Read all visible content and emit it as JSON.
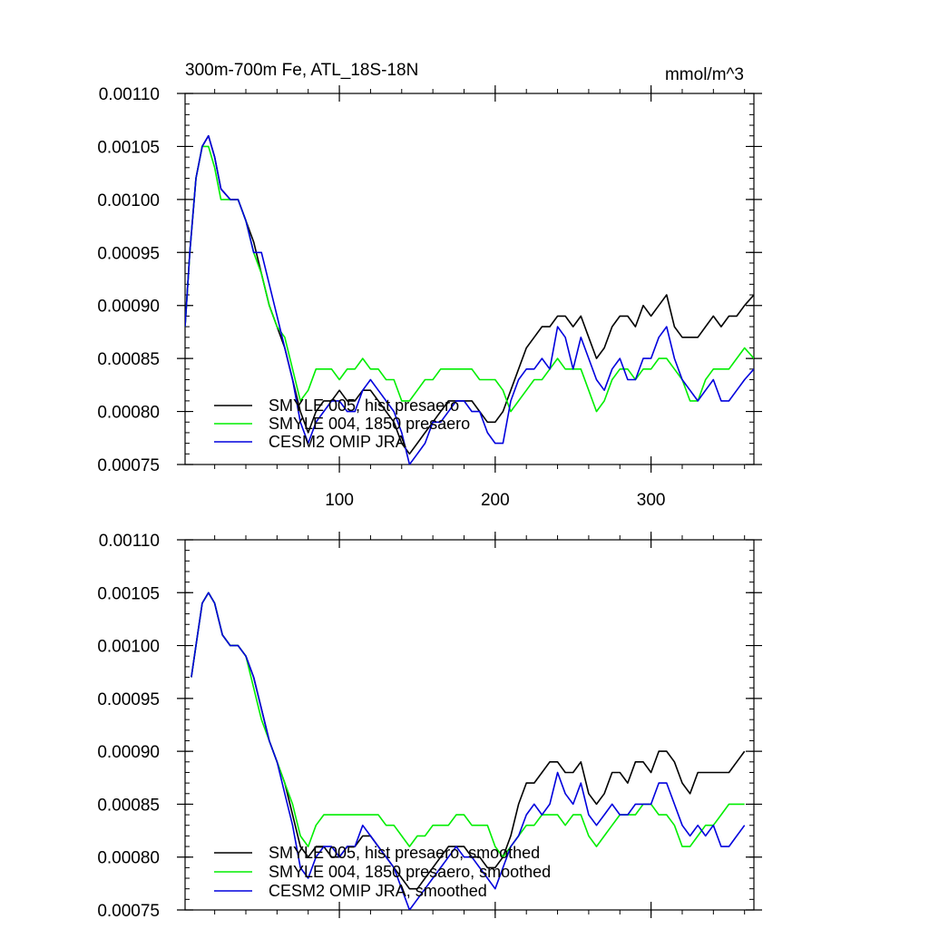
{
  "figure": {
    "title": "300m-700m Fe, ATL_18S-18N",
    "units": "mmol/m^3"
  },
  "colors": {
    "hist": "#000000",
    "pi1850": "#00ee00",
    "omip": "#0000dd"
  },
  "chart_data": [
    {
      "type": "line",
      "title": "300m-700m Fe, ATL_18S-18N",
      "units": "mmol/m^3",
      "xlabel": "",
      "ylabel": "",
      "xlim": [
        1,
        366
      ],
      "ylim": [
        0.00075,
        0.0011
      ],
      "x_ticks": [
        100,
        200,
        300
      ],
      "x_tick_labels": [
        "100",
        "200",
        "300"
      ],
      "y_ticks": [
        0.00075,
        0.0008,
        0.00085,
        0.0009,
        0.00095,
        0.001,
        0.00105,
        0.0011
      ],
      "y_tick_labels": [
        "0.00075",
        "0.00080",
        "0.00085",
        "0.00090",
        "0.00095",
        "0.00100",
        "0.00105",
        "0.00110"
      ],
      "legend_position": "bottom-left",
      "series": [
        {
          "name": "SMYLE 005, hist presaero",
          "color_key": "hist",
          "x": [
            1,
            4,
            8,
            12,
            16,
            20,
            24,
            30,
            35,
            40,
            45,
            50,
            55,
            60,
            65,
            70,
            75,
            80,
            85,
            90,
            95,
            100,
            105,
            110,
            115,
            120,
            125,
            130,
            135,
            140,
            145,
            150,
            155,
            160,
            165,
            170,
            175,
            180,
            185,
            190,
            195,
            200,
            205,
            210,
            215,
            220,
            225,
            230,
            235,
            240,
            245,
            250,
            255,
            260,
            265,
            270,
            275,
            280,
            285,
            290,
            295,
            300,
            305,
            310,
            315,
            320,
            325,
            330,
            335,
            340,
            345,
            350,
            355,
            360,
            366
          ],
          "values": [
            0.00088,
            0.00095,
            0.00102,
            0.00105,
            0.00106,
            0.00104,
            0.00101,
            0.001,
            0.001,
            0.00098,
            0.00096,
            0.00093,
            0.0009,
            0.00088,
            0.00086,
            0.00083,
            0.0008,
            0.00078,
            0.0008,
            0.00081,
            0.00081,
            0.00082,
            0.00081,
            0.00081,
            0.00082,
            0.00082,
            0.00081,
            0.0008,
            0.00079,
            0.00077,
            0.00076,
            0.00077,
            0.00078,
            0.00079,
            0.0008,
            0.00081,
            0.00081,
            0.00081,
            0.00081,
            0.0008,
            0.00079,
            0.00079,
            0.0008,
            0.00082,
            0.00084,
            0.00086,
            0.00087,
            0.00088,
            0.00088,
            0.00089,
            0.00089,
            0.00088,
            0.00089,
            0.00087,
            0.00085,
            0.00086,
            0.00088,
            0.00089,
            0.00089,
            0.00088,
            0.0009,
            0.00089,
            0.0009,
            0.00091,
            0.00088,
            0.00087,
            0.00087,
            0.00087,
            0.00088,
            0.00089,
            0.00088,
            0.00089,
            0.00089,
            0.0009,
            0.00091
          ]
        },
        {
          "name": "SMYLE 004, 1850 presaero",
          "color_key": "pi1850",
          "x": [
            1,
            4,
            8,
            12,
            16,
            20,
            24,
            30,
            35,
            40,
            45,
            50,
            55,
            60,
            65,
            70,
            75,
            80,
            85,
            90,
            95,
            100,
            105,
            110,
            115,
            120,
            125,
            130,
            135,
            140,
            145,
            150,
            155,
            160,
            165,
            170,
            175,
            180,
            185,
            190,
            195,
            200,
            205,
            210,
            215,
            220,
            225,
            230,
            235,
            240,
            245,
            250,
            255,
            260,
            265,
            270,
            275,
            280,
            285,
            290,
            295,
            300,
            305,
            310,
            315,
            320,
            325,
            330,
            335,
            340,
            345,
            350,
            355,
            360,
            366
          ],
          "values": [
            0.00088,
            0.00095,
            0.00102,
            0.00105,
            0.00105,
            0.00103,
            0.001,
            0.001,
            0.001,
            0.00098,
            0.00095,
            0.00093,
            0.0009,
            0.00088,
            0.00087,
            0.00084,
            0.00081,
            0.00082,
            0.00084,
            0.00084,
            0.00084,
            0.00083,
            0.00084,
            0.00084,
            0.00085,
            0.00084,
            0.00084,
            0.00083,
            0.00083,
            0.00081,
            0.00081,
            0.00082,
            0.00083,
            0.00083,
            0.00084,
            0.00084,
            0.00084,
            0.00084,
            0.00084,
            0.00083,
            0.00083,
            0.00083,
            0.00082,
            0.0008,
            0.00081,
            0.00082,
            0.00083,
            0.00083,
            0.00084,
            0.00085,
            0.00084,
            0.00084,
            0.00084,
            0.00082,
            0.0008,
            0.00081,
            0.00083,
            0.00084,
            0.00084,
            0.00083,
            0.00084,
            0.00084,
            0.00085,
            0.00085,
            0.00084,
            0.00083,
            0.00081,
            0.00081,
            0.00083,
            0.00084,
            0.00084,
            0.00084,
            0.00085,
            0.00086,
            0.00085
          ]
        },
        {
          "name": "CESM2 OMIP JRA",
          "color_key": "omip",
          "x": [
            1,
            4,
            8,
            12,
            16,
            20,
            24,
            30,
            35,
            40,
            45,
            50,
            55,
            60,
            65,
            70,
            75,
            80,
            85,
            90,
            95,
            100,
            105,
            110,
            115,
            120,
            125,
            130,
            135,
            140,
            145,
            150,
            155,
            160,
            165,
            170,
            175,
            180,
            185,
            190,
            195,
            200,
            205,
            210,
            215,
            220,
            225,
            230,
            235,
            240,
            245,
            250,
            255,
            260,
            265,
            270,
            275,
            280,
            285,
            290,
            295,
            300,
            305,
            310,
            315,
            320,
            325,
            330,
            335,
            340,
            345,
            350,
            355,
            360,
            366
          ],
          "values": [
            0.00088,
            0.00095,
            0.00102,
            0.00105,
            0.00106,
            0.00104,
            0.00101,
            0.001,
            0.001,
            0.00098,
            0.00095,
            0.00095,
            0.00092,
            0.00089,
            0.00086,
            0.00083,
            0.00079,
            0.00077,
            0.00079,
            0.0008,
            0.00081,
            0.00081,
            0.0008,
            0.0008,
            0.00082,
            0.00083,
            0.00082,
            0.00081,
            0.0008,
            0.00078,
            0.00075,
            0.00076,
            0.00077,
            0.00079,
            0.00079,
            0.0008,
            0.00081,
            0.00081,
            0.0008,
            0.0008,
            0.00078,
            0.00077,
            0.00077,
            0.00081,
            0.00083,
            0.00084,
            0.00084,
            0.00085,
            0.00084,
            0.00088,
            0.00087,
            0.00084,
            0.00087,
            0.00085,
            0.00083,
            0.00082,
            0.00084,
            0.00085,
            0.00083,
            0.00083,
            0.00085,
            0.00085,
            0.00087,
            0.00088,
            0.00085,
            0.00083,
            0.00082,
            0.00081,
            0.00082,
            0.00083,
            0.00081,
            0.00081,
            0.00082,
            0.00083,
            0.00084
          ]
        }
      ]
    },
    {
      "type": "line",
      "title": "",
      "xlabel": "",
      "ylabel": "",
      "xlim": [
        1,
        366
      ],
      "ylim": [
        0.00075,
        0.0011
      ],
      "x_ticks": [
        100,
        200,
        300
      ],
      "x_tick_labels": [],
      "y_ticks": [
        0.00075,
        0.0008,
        0.00085,
        0.0009,
        0.00095,
        0.001,
        0.00105,
        0.0011
      ],
      "y_tick_labels": [
        "0.00075",
        "0.00080",
        "0.00085",
        "0.00090",
        "0.00095",
        "0.00100",
        "0.00105",
        "0.00110"
      ],
      "legend_position": "bottom-left",
      "series": [
        {
          "name": "SMYLE 005, hist presaero, smoothed",
          "color_key": "hist",
          "x": [
            5,
            8,
            12,
            16,
            20,
            25,
            30,
            35,
            40,
            45,
            50,
            55,
            60,
            65,
            70,
            75,
            80,
            85,
            90,
            95,
            100,
            105,
            110,
            115,
            120,
            125,
            130,
            135,
            140,
            145,
            150,
            155,
            160,
            165,
            170,
            175,
            180,
            185,
            190,
            195,
            200,
            205,
            210,
            215,
            220,
            225,
            230,
            235,
            240,
            245,
            250,
            255,
            260,
            265,
            270,
            275,
            280,
            285,
            290,
            295,
            300,
            305,
            310,
            315,
            320,
            325,
            330,
            335,
            340,
            345,
            350,
            355,
            360
          ],
          "values": [
            0.00097,
            0.001,
            0.00104,
            0.00105,
            0.00104,
            0.00101,
            0.001,
            0.001,
            0.00099,
            0.00097,
            0.00094,
            0.00091,
            0.00089,
            0.00087,
            0.00084,
            0.00081,
            0.0008,
            0.00081,
            0.00081,
            0.0008,
            0.0008,
            0.00081,
            0.00081,
            0.00082,
            0.00082,
            0.00081,
            0.0008,
            0.00079,
            0.00078,
            0.00077,
            0.00077,
            0.00078,
            0.00079,
            0.0008,
            0.00081,
            0.00081,
            0.00081,
            0.0008,
            0.0008,
            0.00079,
            0.00079,
            0.0008,
            0.00082,
            0.00085,
            0.00087,
            0.00087,
            0.00088,
            0.00089,
            0.00089,
            0.00088,
            0.00088,
            0.00089,
            0.00086,
            0.00085,
            0.00086,
            0.00088,
            0.00088,
            0.00087,
            0.00089,
            0.00089,
            0.00088,
            0.0009,
            0.0009,
            0.00089,
            0.00087,
            0.00086,
            0.00088,
            0.00088,
            0.00088,
            0.00088,
            0.00088,
            0.00089,
            0.0009
          ]
        },
        {
          "name": "SMYLE 004, 1850 presaero, smoothed",
          "color_key": "pi1850",
          "x": [
            5,
            8,
            12,
            16,
            20,
            25,
            30,
            35,
            40,
            45,
            50,
            55,
            60,
            65,
            70,
            75,
            80,
            85,
            90,
            95,
            100,
            105,
            110,
            115,
            120,
            125,
            130,
            135,
            140,
            145,
            150,
            155,
            160,
            165,
            170,
            175,
            180,
            185,
            190,
            195,
            200,
            205,
            210,
            215,
            220,
            225,
            230,
            235,
            240,
            245,
            250,
            255,
            260,
            265,
            270,
            275,
            280,
            285,
            290,
            295,
            300,
            305,
            310,
            315,
            320,
            325,
            330,
            335,
            340,
            345,
            350,
            355,
            360
          ],
          "values": [
            0.00097,
            0.001,
            0.00104,
            0.00105,
            0.00104,
            0.00101,
            0.001,
            0.001,
            0.00099,
            0.00096,
            0.00093,
            0.00091,
            0.00089,
            0.00087,
            0.00085,
            0.00082,
            0.00081,
            0.00083,
            0.00084,
            0.00084,
            0.00084,
            0.00084,
            0.00084,
            0.00084,
            0.00084,
            0.00084,
            0.00083,
            0.00083,
            0.00082,
            0.00081,
            0.00082,
            0.00082,
            0.00083,
            0.00083,
            0.00083,
            0.00084,
            0.00084,
            0.00083,
            0.00083,
            0.00083,
            0.00081,
            0.0008,
            0.00081,
            0.00082,
            0.00083,
            0.00083,
            0.00084,
            0.00084,
            0.00084,
            0.00083,
            0.00084,
            0.00084,
            0.00082,
            0.00081,
            0.00082,
            0.00083,
            0.00084,
            0.00084,
            0.00084,
            0.00085,
            0.00085,
            0.00084,
            0.00084,
            0.00083,
            0.00081,
            0.00081,
            0.00082,
            0.00083,
            0.00083,
            0.00084,
            0.00085,
            0.00085,
            0.00085
          ]
        },
        {
          "name": "CESM2 OMIP JRA, smoothed",
          "color_key": "omip",
          "x": [
            5,
            8,
            12,
            16,
            20,
            25,
            30,
            35,
            40,
            45,
            50,
            55,
            60,
            65,
            70,
            75,
            80,
            85,
            90,
            95,
            100,
            105,
            110,
            115,
            120,
            125,
            130,
            135,
            140,
            145,
            150,
            155,
            160,
            165,
            170,
            175,
            180,
            185,
            190,
            195,
            200,
            205,
            210,
            215,
            220,
            225,
            230,
            235,
            240,
            245,
            250,
            255,
            260,
            265,
            270,
            275,
            280,
            285,
            290,
            295,
            300,
            305,
            310,
            315,
            320,
            325,
            330,
            335,
            340,
            345,
            350,
            355,
            360
          ],
          "values": [
            0.00097,
            0.001,
            0.00104,
            0.00105,
            0.00104,
            0.00101,
            0.001,
            0.001,
            0.00099,
            0.00097,
            0.00094,
            0.00091,
            0.00089,
            0.00086,
            0.00083,
            0.00079,
            0.00078,
            0.0008,
            0.00081,
            0.00081,
            0.0008,
            0.00081,
            0.00081,
            0.00083,
            0.00082,
            0.00081,
            0.0008,
            0.00079,
            0.00077,
            0.00075,
            0.00076,
            0.00077,
            0.00078,
            0.00079,
            0.0008,
            0.00081,
            0.0008,
            0.0008,
            0.00079,
            0.00078,
            0.00077,
            0.00079,
            0.00081,
            0.00082,
            0.00084,
            0.00085,
            0.00084,
            0.00085,
            0.00088,
            0.00086,
            0.00085,
            0.00087,
            0.00084,
            0.00083,
            0.00084,
            0.00085,
            0.00084,
            0.00084,
            0.00085,
            0.00085,
            0.00085,
            0.00087,
            0.00087,
            0.00085,
            0.00083,
            0.00082,
            0.00083,
            0.00082,
            0.00083,
            0.00081,
            0.00081,
            0.00082,
            0.00083
          ]
        }
      ]
    }
  ]
}
